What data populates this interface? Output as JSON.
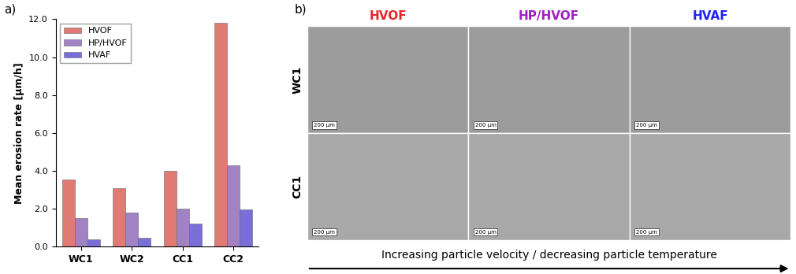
{
  "chart_data": {
    "type": "bar",
    "panel_label": "a)",
    "y_label": "Mean erosion rate [µm/h]",
    "categories": [
      "WC1",
      "WC2",
      "CC1",
      "CC2"
    ],
    "series": [
      {
        "name": "HVOF",
        "color": "#e07b74",
        "values": [
          3.55,
          3.1,
          4.0,
          11.8
        ]
      },
      {
        "name": "HP/HVOF",
        "color": "#a182c4",
        "values": [
          1.5,
          1.8,
          2.0,
          4.3
        ]
      },
      {
        "name": "HVAF",
        "color": "#7a6fd8",
        "values": [
          0.4,
          0.45,
          1.2,
          1.95
        ]
      }
    ],
    "ylim": [
      0,
      12
    ],
    "yticks": [
      {
        "value": 0,
        "label": "0.0"
      },
      {
        "value": 2,
        "label": "2.0"
      },
      {
        "value": 4,
        "label": "4.0"
      },
      {
        "value": 6,
        "label": "6.0"
      },
      {
        "value": 8,
        "label": "8.0"
      },
      {
        "value": 10,
        "label": "10.0"
      },
      {
        "value": 12,
        "label": "12.0"
      }
    ],
    "legend": "upper left",
    "grid": false
  },
  "micrographs": {
    "panel_label": "b)",
    "columns": [
      {
        "label": "HVOF",
        "color": "#e8262a"
      },
      {
        "label": "HP/HVOF",
        "color": "#a020c0"
      },
      {
        "label": "HVAF",
        "color": "#1f1fff"
      }
    ],
    "rows": [
      "WC1",
      "CC1"
    ],
    "scale_bar": "200 µm",
    "arrow_text": "Increasing particle velocity / decreasing particle temperature"
  }
}
